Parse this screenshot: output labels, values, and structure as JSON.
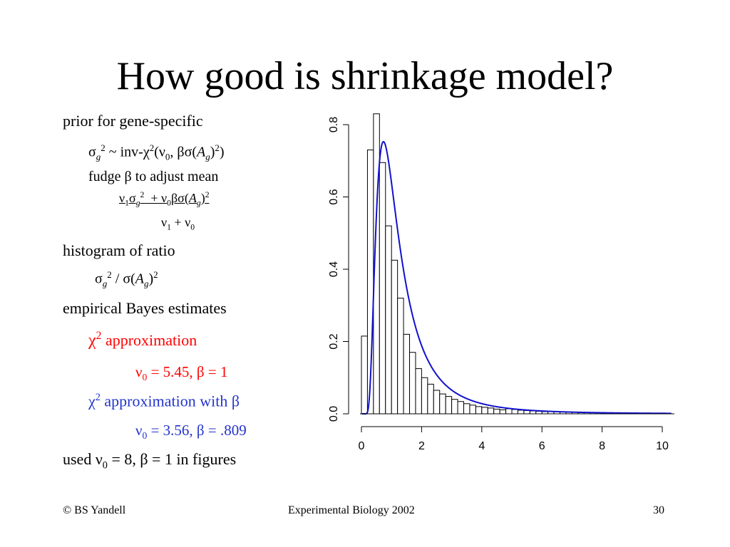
{
  "title": "How good is shrinkage model?",
  "bullets": {
    "prior": "prior for gene-specific",
    "fudge": "fudge β to adjust mean",
    "histogram": "histogram of ratio",
    "empirical": "empirical Bayes estimates",
    "chi_approx": "approximation",
    "chi_approx_beta": "approximation with β",
    "est1": "= 5.45, β = 1",
    "est2": "= 3.56, β = .809",
    "used_pre": "used ν",
    "used_post": "= 8, β = 1 in figures"
  },
  "footer": {
    "left": "© BS Yandell",
    "center": "Experimental Biology 2002",
    "right": "30"
  },
  "colors": {
    "red": "#ff0000",
    "blue": "#2233cc",
    "curve": "#1111cc"
  },
  "chart_data": {
    "type": "bar",
    "bin_width": 0.2,
    "bin_start": 0,
    "values": [
      0.215,
      0.73,
      0.83,
      0.695,
      0.52,
      0.425,
      0.32,
      0.22,
      0.17,
      0.125,
      0.1,
      0.082,
      0.065,
      0.055,
      0.048,
      0.04,
      0.034,
      0.028,
      0.024,
      0.02,
      0.018,
      0.016,
      0.013,
      0.011,
      0.014,
      0.012,
      0.01,
      0.009,
      0.008,
      0.007,
      0.006,
      0.007,
      0.006,
      0.005,
      0.005,
      0.004,
      0.003,
      0.004,
      0.003,
      0.003,
      0.002,
      0.002,
      0.002,
      0.001,
      0.003,
      0.001,
      0.001,
      0.001,
      0.001,
      0.001,
      0.002,
      0.0
    ],
    "curve": {
      "type": "scaled-inv-chi2-density",
      "nu0": 5.45
    },
    "xlim": [
      0,
      10.5
    ],
    "ylim": [
      0,
      0.9
    ],
    "xticks": [
      "0",
      "2",
      "4",
      "6",
      "8",
      "10"
    ],
    "yticks": [
      "0.0",
      "0.2",
      "0.4",
      "0.6",
      "0.8"
    ]
  }
}
